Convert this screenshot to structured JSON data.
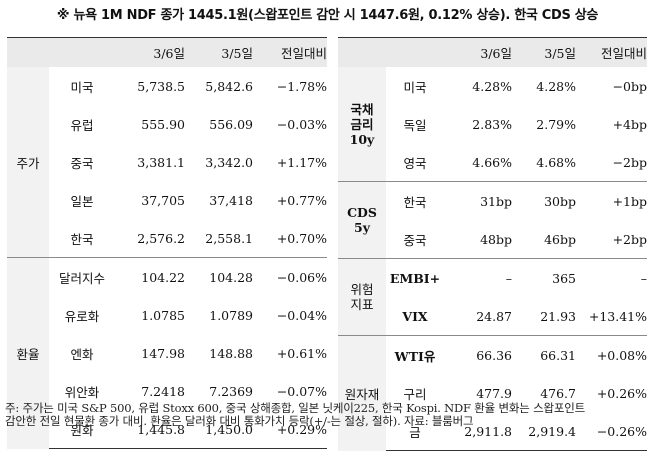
{
  "title": "※ 뉴욕 1M NDF 종가 1445.1원(스왑포인트 감안 시 1447.6원, 0.12% 상승). 한국 CDS 상승",
  "left_table": {
    "headers": [
      "3/6일",
      "3/5일",
      "전일대비"
    ],
    "stocks": {
      "category": "주가",
      "rows": [
        {
          "name": "미국",
          "d1": "5,738.5",
          "d2": "5,842.6",
          "chg": "−1.78%"
        },
        {
          "name": "유럽",
          "d1": "555.90",
          "d2": "556.09",
          "chg": "−0.03%"
        },
        {
          "name": "중국",
          "d1": "3,381.1",
          "d2": "3,342.0",
          "chg": "+1.17%"
        },
        {
          "name": "일본",
          "d1": "37,705",
          "d2": "37,418",
          "chg": "+0.77%"
        },
        {
          "name": "한국",
          "d1": "2,576.2",
          "d2": "2,558.1",
          "chg": "+0.70%"
        }
      ]
    },
    "fx": {
      "category": "환율",
      "rows": [
        {
          "name": "달러지수",
          "d1": "104.22",
          "d2": "104.28",
          "chg": "−0.06%"
        },
        {
          "name": "유로화",
          "d1": "1.0785",
          "d2": "1.0789",
          "chg": "−0.04%"
        },
        {
          "name": "엔화",
          "d1": "147.98",
          "d2": "148.88",
          "chg": "+0.61%"
        },
        {
          "name": "위안화",
          "d1": "7.2418",
          "d2": "7.2369",
          "chg": "−0.07%"
        },
        {
          "name": "원화",
          "d1": "1,445.8",
          "d2": "1,450.0",
          "chg": "+0.29%"
        }
      ]
    }
  },
  "right_table": {
    "headers": [
      "3/6일",
      "3/5일",
      "전일대비"
    ],
    "bonds": {
      "category_lines": [
        "국채",
        "금리",
        "10y"
      ],
      "rows": [
        {
          "name": "미국",
          "d1": "4.28%",
          "d2": "4.28%",
          "chg": "−0bp"
        },
        {
          "name": "독일",
          "d1": "2.83%",
          "d2": "2.79%",
          "chg": "+4bp"
        },
        {
          "name": "영국",
          "d1": "4.66%",
          "d2": "4.68%",
          "chg": "−2bp"
        }
      ]
    },
    "cds": {
      "category_lines": [
        "CDS",
        "5y"
      ],
      "rows": [
        {
          "name": "한국",
          "d1": "31bp",
          "d2": "30bp",
          "chg": "+1bp"
        },
        {
          "name": "중국",
          "d1": "48bp",
          "d2": "46bp",
          "chg": "+2bp"
        }
      ]
    },
    "risk": {
      "category_lines": [
        "위험",
        "지표"
      ],
      "rows": [
        {
          "name": "EMBI+",
          "d1": "–",
          "d2": "365",
          "chg": "–"
        },
        {
          "name": "VIX",
          "d1": "24.87",
          "d2": "21.93",
          "chg": "+13.41%"
        }
      ]
    },
    "commodities": {
      "category": "원자재",
      "rows": [
        {
          "name": "WTI유",
          "d1": "66.36",
          "d2": "66.31",
          "chg": "+0.08%"
        },
        {
          "name": "구리",
          "d1": "477.9",
          "d2": "476.7",
          "chg": "+0.26%"
        },
        {
          "name": "금",
          "d1": "2,911.8",
          "d2": "2,919.4",
          "chg": "−0.26%"
        }
      ]
    }
  },
  "footnote": {
    "line1": "주: 주가는 미국 S&P 500, 유럽 Stoxx 600, 중국 상해종합, 일본 닛케이225, 한국 Kospi. NDF 환율 변화는 스왑포인트",
    "line2": "감안한 전일 현물환 종가 대비. 환율은 달러화 대비 통화가치 등락(+/-는 절상, 절하). 자료: 블룸버그"
  }
}
